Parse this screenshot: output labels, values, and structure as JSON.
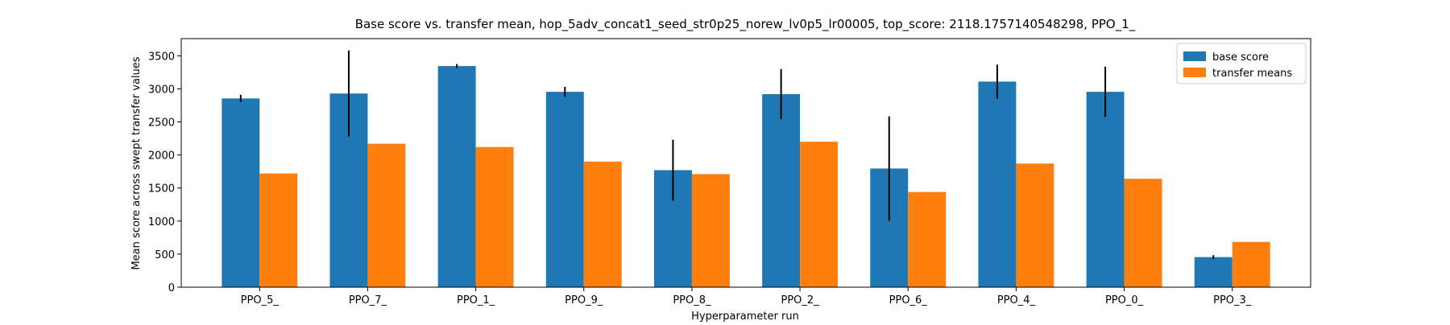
{
  "chart_data": {
    "type": "bar",
    "title": "Base score vs. transfer mean, hop_5adv_concat1_seed_str0p25_norew_lv0p5_lr00005, top_score: 2118.1757140548298, PPO_1_",
    "xlabel": "Hyperparameter run",
    "ylabel": "Mean score across swept transfer values",
    "categories": [
      "PPO_5_",
      "PPO_7_",
      "PPO_1_",
      "PPO_9_",
      "PPO_8_",
      "PPO_2_",
      "PPO_6_",
      "PPO_4_",
      "PPO_0_",
      "PPO_3_"
    ],
    "series": [
      {
        "name": "base score",
        "color": "#1f77b4",
        "values": [
          2855,
          2930,
          3345,
          2955,
          1770,
          2920,
          1795,
          3110,
          2955,
          455
        ],
        "errors": [
          55,
          650,
          30,
          75,
          460,
          380,
          790,
          255,
          380,
          30
        ]
      },
      {
        "name": "transfer means",
        "color": "#ff7f0e",
        "values": [
          1720,
          2170,
          2120,
          1900,
          1710,
          2200,
          1440,
          1870,
          1640,
          685
        ]
      }
    ],
    "yticks": [
      0,
      500,
      1000,
      1500,
      2000,
      2500,
      3000,
      3500
    ],
    "ylim": [
      0,
      3760
    ],
    "legend_position": "upper right",
    "grid": false
  }
}
